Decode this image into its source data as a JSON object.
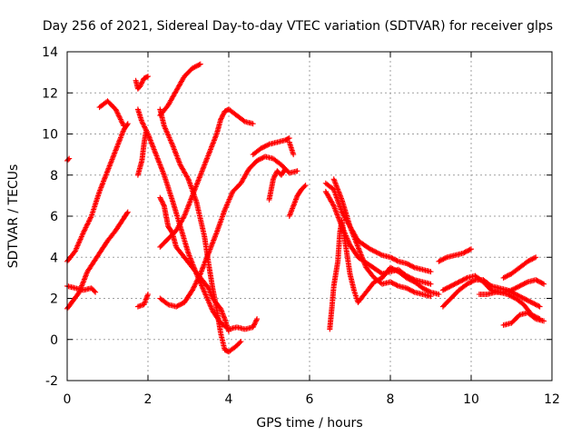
{
  "chart_data": {
    "type": "scatter",
    "title": "Day 256 of 2021, Sidereal Day-to-day VTEC variation (SDTVAR) for receiver glps",
    "xlabel": "GPS time / hours",
    "ylabel": "SDTVAR / TECUs",
    "xlim": [
      0,
      12
    ],
    "ylim": [
      -2,
      14
    ],
    "xticks": [
      "0",
      "2",
      "4",
      "6",
      "8",
      "10",
      "12"
    ],
    "yticks": [
      "-2",
      "0",
      "2",
      "4",
      "6",
      "8",
      "10",
      "12",
      "14"
    ],
    "grid": true,
    "marker": "+",
    "color": "#ff0000",
    "series": [
      {
        "name": "s1",
        "points": [
          [
            0,
            1.5
          ],
          [
            0.3,
            2.3
          ],
          [
            0.5,
            3.3
          ],
          [
            0.8,
            4.2
          ],
          [
            1.0,
            4.8
          ],
          [
            1.2,
            5.3
          ],
          [
            1.4,
            5.9
          ],
          [
            1.5,
            6.2
          ]
        ]
      },
      {
        "name": "s2",
        "points": [
          [
            0,
            3.8
          ],
          [
            0.2,
            4.3
          ],
          [
            0.4,
            5.2
          ],
          [
            0.6,
            6.0
          ],
          [
            0.8,
            7.2
          ],
          [
            1.0,
            8.2
          ],
          [
            1.2,
            9.2
          ],
          [
            1.4,
            10.2
          ],
          [
            1.5,
            10.5
          ]
        ]
      },
      {
        "name": "s3",
        "points": [
          [
            0,
            2.6
          ],
          [
            0.2,
            2.5
          ],
          [
            0.4,
            2.4
          ],
          [
            0.6,
            2.5
          ],
          [
            0.7,
            2.3
          ]
        ]
      },
      {
        "name": "s4",
        "points": [
          [
            0,
            8.7
          ],
          [
            0.05,
            8.8
          ]
        ]
      },
      {
        "name": "s5",
        "points": [
          [
            0.8,
            11.3
          ],
          [
            1.0,
            11.6
          ],
          [
            1.2,
            11.2
          ],
          [
            1.4,
            10.4
          ]
        ]
      },
      {
        "name": "s6",
        "points": [
          [
            1.7,
            12.6
          ],
          [
            1.75,
            12.2
          ],
          [
            1.8,
            12.3
          ],
          [
            1.9,
            12.7
          ],
          [
            2.0,
            12.8
          ]
        ]
      },
      {
        "name": "s7",
        "points": [
          [
            1.75,
            11.2
          ],
          [
            1.85,
            10.6
          ],
          [
            2.0,
            10.0
          ],
          [
            2.2,
            9.0
          ],
          [
            2.4,
            8.0
          ],
          [
            2.6,
            6.8
          ],
          [
            2.8,
            5.5
          ],
          [
            3.0,
            4.2
          ],
          [
            3.2,
            3.2
          ],
          [
            3.4,
            2.3
          ],
          [
            3.6,
            1.4
          ],
          [
            3.8,
            0.8
          ],
          [
            4.0,
            0.5
          ],
          [
            4.2,
            0.6
          ],
          [
            4.4,
            0.5
          ],
          [
            4.6,
            0.6
          ],
          [
            4.7,
            1.0
          ]
        ]
      },
      {
        "name": "s8",
        "points": [
          [
            1.75,
            8.0
          ],
          [
            1.85,
            8.7
          ],
          [
            1.9,
            9.5
          ],
          [
            1.95,
            10.1
          ]
        ]
      },
      {
        "name": "s9",
        "points": [
          [
            1.75,
            1.6
          ],
          [
            1.9,
            1.7
          ],
          [
            2.0,
            2.2
          ]
        ]
      },
      {
        "name": "s10",
        "points": [
          [
            2.3,
            6.9
          ],
          [
            2.4,
            6.5
          ],
          [
            2.45,
            6.0
          ],
          [
            2.5,
            5.5
          ],
          [
            2.6,
            5.2
          ],
          [
            2.7,
            4.5
          ],
          [
            2.9,
            4.0
          ],
          [
            3.1,
            3.5
          ],
          [
            3.3,
            3.0
          ],
          [
            3.5,
            2.5
          ],
          [
            3.6,
            2.0
          ],
          [
            3.8,
            1.5
          ],
          [
            3.9,
            1.0
          ],
          [
            4.0,
            0.4
          ]
        ]
      },
      {
        "name": "s11",
        "points": [
          [
            2.3,
            2.0
          ],
          [
            2.5,
            1.7
          ],
          [
            2.7,
            1.6
          ],
          [
            2.9,
            1.8
          ],
          [
            3.1,
            2.4
          ],
          [
            3.3,
            3.2
          ],
          [
            3.5,
            4.2
          ],
          [
            3.7,
            5.2
          ],
          [
            3.9,
            6.3
          ],
          [
            4.1,
            7.2
          ],
          [
            4.3,
            7.6
          ],
          [
            4.5,
            8.3
          ],
          [
            4.7,
            8.7
          ],
          [
            4.9,
            8.9
          ],
          [
            5.1,
            8.8
          ],
          [
            5.3,
            8.5
          ],
          [
            5.5,
            8.1
          ],
          [
            5.7,
            8.2
          ]
        ]
      },
      {
        "name": "s12",
        "points": [
          [
            2.3,
            4.5
          ],
          [
            2.5,
            4.9
          ],
          [
            2.7,
            5.3
          ],
          [
            2.9,
            6.0
          ],
          [
            3.1,
            7.0
          ],
          [
            3.3,
            8.0
          ],
          [
            3.5,
            9.0
          ],
          [
            3.7,
            10.0
          ],
          [
            3.8,
            10.7
          ],
          [
            3.9,
            11.1
          ],
          [
            4.0,
            11.2
          ],
          [
            4.2,
            10.9
          ],
          [
            4.4,
            10.6
          ],
          [
            4.6,
            10.5
          ]
        ]
      },
      {
        "name": "s13",
        "points": [
          [
            2.3,
            10.9
          ],
          [
            2.5,
            11.4
          ],
          [
            2.7,
            12.1
          ],
          [
            2.9,
            12.8
          ],
          [
            3.1,
            13.2
          ],
          [
            3.3,
            13.4
          ]
        ]
      },
      {
        "name": "s14",
        "points": [
          [
            2.3,
            11.2
          ],
          [
            2.4,
            10.4
          ],
          [
            2.6,
            9.5
          ],
          [
            2.8,
            8.5
          ],
          [
            3.0,
            7.8
          ],
          [
            3.2,
            6.7
          ],
          [
            3.4,
            5.0
          ],
          [
            3.5,
            3.7
          ],
          [
            3.6,
            2.5
          ],
          [
            3.7,
            1.5
          ],
          [
            3.8,
            0.3
          ],
          [
            3.9,
            -0.5
          ],
          [
            4.0,
            -0.6
          ],
          [
            4.2,
            -0.3
          ],
          [
            4.3,
            -0.1
          ]
        ]
      },
      {
        "name": "s15",
        "points": [
          [
            4.6,
            9.0
          ],
          [
            4.8,
            9.3
          ],
          [
            5.0,
            9.5
          ],
          [
            5.2,
            9.6
          ],
          [
            5.4,
            9.7
          ],
          [
            5.5,
            9.8
          ]
        ]
      },
      {
        "name": "s16",
        "points": [
          [
            5.0,
            6.8
          ],
          [
            5.1,
            7.8
          ],
          [
            5.2,
            8.2
          ],
          [
            5.3,
            8.0
          ],
          [
            5.4,
            8.3
          ]
        ]
      },
      {
        "name": "s17",
        "points": [
          [
            5.5,
            6.0
          ],
          [
            5.6,
            6.5
          ],
          [
            5.7,
            7.0
          ],
          [
            5.8,
            7.3
          ],
          [
            5.9,
            7.5
          ]
        ]
      },
      {
        "name": "s18",
        "points": [
          [
            5.5,
            9.6
          ],
          [
            5.6,
            9.0
          ]
        ]
      },
      {
        "name": "s19",
        "points": [
          [
            6.4,
            7.6
          ],
          [
            6.6,
            7.3
          ],
          [
            6.8,
            6.2
          ],
          [
            7.0,
            5.5
          ],
          [
            7.2,
            4.8
          ],
          [
            7.5,
            4.4
          ],
          [
            7.8,
            4.1
          ],
          [
            8.0,
            4.0
          ],
          [
            8.2,
            3.8
          ],
          [
            8.4,
            3.7
          ],
          [
            8.6,
            3.5
          ],
          [
            8.8,
            3.4
          ],
          [
            9.0,
            3.3
          ]
        ]
      },
      {
        "name": "s20",
        "points": [
          [
            6.4,
            7.2
          ],
          [
            6.6,
            6.5
          ],
          [
            6.8,
            5.5
          ],
          [
            7.0,
            4.6
          ],
          [
            7.2,
            4.0
          ],
          [
            7.5,
            3.6
          ],
          [
            7.8,
            3.2
          ],
          [
            8.0,
            3.3
          ],
          [
            8.2,
            3.4
          ],
          [
            8.4,
            3.1
          ],
          [
            8.6,
            2.9
          ],
          [
            8.8,
            2.8
          ],
          [
            9.0,
            2.7
          ]
        ]
      },
      {
        "name": "s21",
        "points": [
          [
            6.5,
            0.5
          ],
          [
            6.55,
            1.5
          ],
          [
            6.6,
            2.6
          ],
          [
            6.7,
            3.8
          ],
          [
            6.75,
            5.2
          ],
          [
            6.8,
            5.8
          ],
          [
            6.9,
            4.5
          ],
          [
            7.0,
            3.2
          ],
          [
            7.1,
            2.4
          ],
          [
            7.2,
            1.8
          ],
          [
            7.4,
            2.3
          ],
          [
            7.6,
            2.8
          ],
          [
            7.8,
            3.0
          ],
          [
            8.0,
            3.5
          ],
          [
            8.2,
            3.3
          ],
          [
            8.4,
            3.0
          ],
          [
            8.6,
            2.8
          ],
          [
            8.8,
            2.5
          ],
          [
            9.0,
            2.3
          ],
          [
            9.2,
            2.2
          ]
        ]
      },
      {
        "name": "s22",
        "points": [
          [
            6.6,
            7.8
          ],
          [
            6.8,
            6.8
          ],
          [
            7.0,
            5.5
          ],
          [
            7.2,
            4.5
          ],
          [
            7.4,
            3.5
          ],
          [
            7.6,
            3.0
          ],
          [
            7.8,
            2.7
          ],
          [
            8.0,
            2.8
          ],
          [
            8.2,
            2.6
          ],
          [
            8.4,
            2.5
          ],
          [
            8.6,
            2.3
          ],
          [
            8.8,
            2.2
          ],
          [
            9.0,
            2.1
          ]
        ]
      },
      {
        "name": "s23",
        "points": [
          [
            9.2,
            3.8
          ],
          [
            9.4,
            4.0
          ],
          [
            9.6,
            4.1
          ],
          [
            9.8,
            4.2
          ],
          [
            10.0,
            4.4
          ]
        ]
      },
      {
        "name": "s24",
        "points": [
          [
            9.3,
            1.6
          ],
          [
            9.5,
            2.0
          ],
          [
            9.7,
            2.4
          ],
          [
            9.9,
            2.7
          ],
          [
            10.1,
            2.9
          ],
          [
            10.3,
            2.9
          ],
          [
            10.5,
            2.6
          ],
          [
            10.7,
            2.5
          ],
          [
            10.9,
            2.4
          ],
          [
            11.1,
            2.2
          ],
          [
            11.3,
            2.0
          ],
          [
            11.5,
            1.8
          ],
          [
            11.7,
            1.6
          ]
        ]
      },
      {
        "name": "s25",
        "points": [
          [
            9.3,
            2.4
          ],
          [
            9.5,
            2.6
          ],
          [
            9.7,
            2.8
          ],
          [
            9.9,
            3.0
          ],
          [
            10.1,
            3.1
          ],
          [
            10.3,
            2.8
          ],
          [
            10.5,
            2.4
          ],
          [
            10.7,
            2.3
          ],
          [
            10.9,
            2.2
          ],
          [
            11.1,
            2.0
          ],
          [
            11.3,
            1.7
          ],
          [
            11.5,
            1.2
          ],
          [
            11.7,
            1.0
          ]
        ]
      },
      {
        "name": "s26",
        "points": [
          [
            10.2,
            2.2
          ],
          [
            10.4,
            2.2
          ],
          [
            10.6,
            2.3
          ],
          [
            10.8,
            2.3
          ],
          [
            11.0,
            2.4
          ],
          [
            11.2,
            2.6
          ],
          [
            11.4,
            2.8
          ],
          [
            11.6,
            2.9
          ],
          [
            11.8,
            2.7
          ]
        ]
      },
      {
        "name": "s27",
        "points": [
          [
            10.8,
            0.7
          ],
          [
            11.0,
            0.8
          ],
          [
            11.2,
            1.2
          ],
          [
            11.4,
            1.3
          ],
          [
            11.6,
            1.0
          ],
          [
            11.8,
            0.9
          ]
        ]
      },
      {
        "name": "s28",
        "points": [
          [
            10.8,
            3.0
          ],
          [
            11.0,
            3.2
          ],
          [
            11.2,
            3.5
          ],
          [
            11.4,
            3.8
          ],
          [
            11.6,
            4.0
          ]
        ]
      }
    ]
  }
}
